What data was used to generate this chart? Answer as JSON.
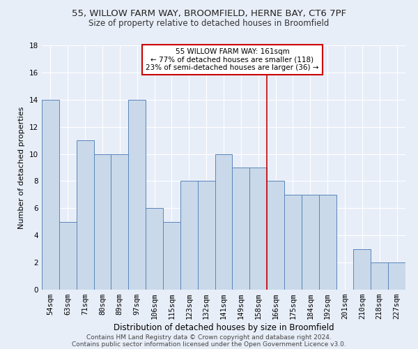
{
  "title1": "55, WILLOW FARM WAY, BROOMFIELD, HERNE BAY, CT6 7PF",
  "title2": "Size of property relative to detached houses in Broomfield",
  "xlabel": "Distribution of detached houses by size in Broomfield",
  "ylabel": "Number of detached properties",
  "categories": [
    "54sqm",
    "63sqm",
    "71sqm",
    "80sqm",
    "89sqm",
    "97sqm",
    "106sqm",
    "115sqm",
    "123sqm",
    "132sqm",
    "141sqm",
    "149sqm",
    "158sqm",
    "166sqm",
    "175sqm",
    "184sqm",
    "192sqm",
    "201sqm",
    "210sqm",
    "218sqm",
    "227sqm"
  ],
  "values": [
    14,
    5,
    11,
    10,
    10,
    14,
    6,
    5,
    8,
    8,
    10,
    9,
    9,
    8,
    7,
    7,
    7,
    0,
    3,
    2,
    2
  ],
  "bar_color": "#c9d9ea",
  "bar_edge_color": "#5a85bb",
  "bg_color": "#e8eef8",
  "grid_color": "#ffffff",
  "annotation_text": "55 WILLOW FARM WAY: 161sqm\n← 77% of detached houses are smaller (118)\n23% of semi-detached houses are larger (36) →",
  "annotation_box_color": "#ffffff",
  "annotation_border_color": "#cc0000",
  "vline_color": "#cc0000",
  "ylim": [
    0,
    18
  ],
  "yticks": [
    0,
    2,
    4,
    6,
    8,
    10,
    12,
    14,
    16,
    18
  ],
  "footer1": "Contains HM Land Registry data © Crown copyright and database right 2024.",
  "footer2": "Contains public sector information licensed under the Open Government Licence v3.0.",
  "title1_fontsize": 9.5,
  "title2_fontsize": 8.5,
  "xlabel_fontsize": 8.5,
  "ylabel_fontsize": 8,
  "tick_fontsize": 7.5,
  "annotation_fontsize": 7.5,
  "footer_fontsize": 6.5
}
